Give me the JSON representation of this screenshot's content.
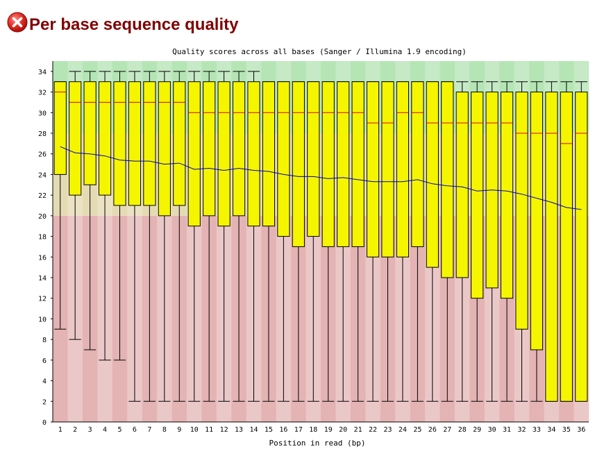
{
  "page": {
    "title": "Per base sequence quality",
    "status_icon": "fail-icon"
  },
  "colors": {
    "title": "#800000",
    "fail_icon": "#d9201a",
    "good_band_a": "#b5e5b5",
    "good_band_b": "#c6e9c6",
    "warn_band_a": "#e4dbb4",
    "warn_band_b": "#ebe2c4",
    "bad_band_a": "#e4b3b3",
    "bad_band_b": "#ebc8c8",
    "box_fill": "#f5f500",
    "median_line": "#e00000",
    "mean_line": "#0000b0"
  },
  "chart_data": {
    "type": "boxplot",
    "title": "Quality scores across all bases (Sanger / Illumina 1.9 encoding)",
    "xlabel": "Position in read (bp)",
    "ylabel": "",
    "ylim": [
      0,
      35
    ],
    "yticks": [
      0,
      2,
      4,
      6,
      8,
      10,
      12,
      14,
      16,
      18,
      20,
      22,
      24,
      26,
      28,
      30,
      32,
      34
    ],
    "zones": [
      {
        "from": 0,
        "to": 20,
        "quality": "bad"
      },
      {
        "from": 20,
        "to": 28,
        "quality": "warning"
      },
      {
        "from": 28,
        "to": 35,
        "quality": "good"
      }
    ],
    "grid": false,
    "legend": "none",
    "categories": [
      "1",
      "2",
      "3",
      "4",
      "5",
      "6",
      "7",
      "8",
      "9",
      "10",
      "11",
      "12",
      "13",
      "14",
      "15",
      "16",
      "17",
      "18",
      "19",
      "20",
      "21",
      "22",
      "23",
      "24",
      "25",
      "26",
      "27",
      "28",
      "29",
      "30",
      "31",
      "32",
      "33",
      "34",
      "35",
      "36"
    ],
    "whisker_low": [
      9,
      8,
      7,
      6,
      6,
      2,
      2,
      2,
      2,
      2,
      2,
      2,
      2,
      2,
      2,
      2,
      2,
      2,
      2,
      2,
      2,
      2,
      2,
      2,
      2,
      2,
      2,
      2,
      2,
      2,
      2,
      2,
      2,
      2,
      2,
      2
    ],
    "q1": [
      24,
      22,
      23,
      22,
      21,
      21,
      21,
      20,
      21,
      19,
      20,
      19,
      20,
      19,
      19,
      18,
      17,
      18,
      17,
      17,
      17,
      16,
      16,
      16,
      17,
      15,
      14,
      14,
      12,
      13,
      12,
      9,
      7,
      2,
      2,
      2
    ],
    "median": [
      32,
      31,
      31,
      31,
      31,
      31,
      31,
      31,
      31,
      30,
      30,
      30,
      30,
      30,
      30,
      30,
      30,
      30,
      30,
      30,
      30,
      29,
      29,
      30,
      30,
      29,
      29,
      29,
      29,
      29,
      29,
      28,
      28,
      28,
      27,
      28
    ],
    "q3": [
      33,
      33,
      33,
      33,
      33,
      33,
      33,
      33,
      33,
      33,
      33,
      33,
      33,
      33,
      33,
      33,
      33,
      33,
      33,
      33,
      33,
      33,
      33,
      33,
      33,
      33,
      33,
      32,
      32,
      32,
      32,
      32,
      32,
      32,
      32,
      32
    ],
    "whisker_high": [
      33,
      34,
      34,
      34,
      34,
      34,
      34,
      34,
      34,
      34,
      34,
      34,
      34,
      34,
      33,
      33,
      33,
      33,
      33,
      33,
      33,
      33,
      33,
      33,
      33,
      33,
      33,
      33,
      33,
      33,
      33,
      33,
      33,
      33,
      33,
      33
    ],
    "mean": [
      26.7,
      26.1,
      26.0,
      25.8,
      25.4,
      25.3,
      25.3,
      25.0,
      25.1,
      24.5,
      24.6,
      24.4,
      24.6,
      24.4,
      24.3,
      24.0,
      23.8,
      23.8,
      23.6,
      23.7,
      23.5,
      23.3,
      23.3,
      23.3,
      23.5,
      23.1,
      22.9,
      22.8,
      22.4,
      22.5,
      22.4,
      22.1,
      21.7,
      21.3,
      20.8,
      20.6
    ]
  }
}
